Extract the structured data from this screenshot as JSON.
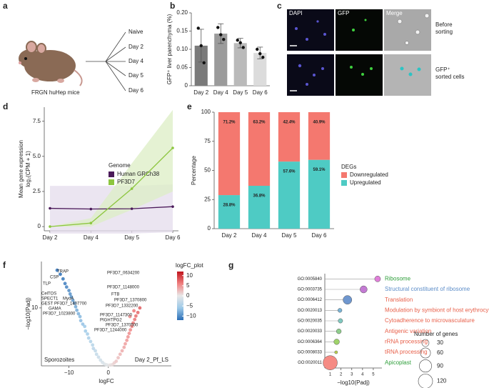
{
  "panels": {
    "labels": [
      "a",
      "b",
      "c",
      "d",
      "e",
      "f",
      "g"
    ]
  },
  "diagram_a": {
    "mouse_label": "FRGN huHep mice",
    "groups": [
      "Naive",
      "Day 2",
      "Day 4",
      "Day 5",
      "Day 6"
    ]
  },
  "image_c": {
    "columns": [
      "DAPI",
      "GFP",
      "Merge"
    ],
    "row_labels": [
      [
        "Before",
        "sorting"
      ],
      [
        "GFP⁺",
        "sorted cells"
      ]
    ]
  },
  "chart_data": [
    {
      "type": "bar",
      "ylabel": "GFP⁺ liver parenchyma (%)",
      "categories": [
        "Day 2",
        "Day 4",
        "Day 5",
        "Day 6"
      ],
      "values": [
        0.11,
        0.143,
        0.117,
        0.09
      ],
      "errors": [
        0.045,
        0.027,
        0.013,
        0.016
      ],
      "points": [
        [
          0.158,
          0.11,
          0.063
        ],
        [
          0.16,
          0.14,
          0.127
        ],
        [
          0.125,
          0.118,
          0.105
        ],
        [
          0.1,
          0.088,
          0.078
        ]
      ],
      "colors": [
        "#7a7a7a",
        "#9b9b9b",
        "#bababa",
        "#dcdcdc"
      ],
      "ylim": [
        0,
        0.2
      ],
      "yticks": [
        0,
        0.05,
        {
          "value": 0.1,
          "label": "0.10"
        },
        0.15,
        {
          "value": 0.2,
          "label": "0.20"
        }
      ]
    },
    {
      "type": "line",
      "ylabel": "Mean gene expression",
      "ylabel2": "log₂(CPM + 1)",
      "legend_title": "Genome",
      "categories": [
        "Day 2",
        "Day 4",
        "Day 5",
        "Day 6"
      ],
      "series": [
        {
          "name": "Human GRCh38",
          "color": "#4b1a5a",
          "band_color": "#e4dcec",
          "values": [
            1.3,
            1.25,
            1.27,
            1.42
          ],
          "band_lower": [
            -0.5,
            -0.5,
            -0.5,
            -0.4
          ],
          "band_upper": [
            2.9,
            2.9,
            2.9,
            3.0
          ]
        },
        {
          "name": "PF3D7",
          "color": "#8dc63f",
          "band_color": "#dcedc4",
          "values": [
            0,
            0.25,
            2.7,
            5.6
          ],
          "band_lower": [
            0,
            0,
            1.2,
            2.5
          ],
          "band_upper": [
            0,
            0.6,
            4.5,
            8.3
          ]
        }
      ],
      "ylim": [
        -0.3,
        8.5
      ],
      "yticks": [
        0,
        2.5,
        {
          "value": 5,
          "label": "5.0"
        },
        7.5
      ]
    },
    {
      "type": "stacked_bar",
      "ylabel": "Percentage",
      "legend_title": "DEGs",
      "categories": [
        "Day 2",
        "Day 4",
        "Day 5",
        "Day 6"
      ],
      "series": [
        {
          "name": "Downregulated",
          "color": "#f4786f",
          "values": [
            71.2,
            63.2,
            42.4,
            40.9
          ],
          "value_labels": [
            "71.2%",
            "63.2%",
            "42.4%",
            "40.9%"
          ]
        },
        {
          "name": "Upregulated",
          "color": "#4ecbc4",
          "values": [
            28.8,
            36.8,
            57.6,
            59.1
          ],
          "value_labels": [
            "28.8%",
            "36.8%",
            "57.6%",
            "59.1%"
          ]
        }
      ],
      "ylim": [
        0,
        100
      ],
      "yticks": [
        0,
        25,
        50,
        75,
        100
      ]
    },
    {
      "type": "scatter",
      "xlabel": "logFC",
      "ylabel": "−log10(Padj)",
      "left_label": "Sporozoites",
      "right_label": "Day 2_Pf_LS",
      "x": [
        -1.5,
        -2,
        -2.5,
        -3,
        -3.3,
        -3.8,
        -4,
        -4.5,
        -5,
        -5.3,
        -5.8,
        -6,
        -6.5,
        -7,
        -7.2,
        -7.6,
        -8,
        -8.3,
        -8.6,
        -9,
        -9.4,
        -9.7,
        -10,
        -10.6,
        -11,
        -11.5,
        -12.2,
        -13,
        -1,
        0,
        1,
        -0.5,
        0.5,
        1.5,
        2,
        2.5,
        3,
        3.5,
        4,
        4.3,
        4.7,
        5,
        5.3,
        5.6,
        6,
        6.3,
        6.7,
        7,
        7.5,
        8,
        5.5,
        6.5
      ],
      "y": [
        0.6,
        1,
        1.5,
        2,
        2.6,
        3,
        3.6,
        4.2,
        4.8,
        5.5,
        6,
        6.8,
        7.2,
        7.8,
        8.5,
        9,
        9.6,
        10.2,
        10.8,
        11.3,
        11.9,
        12.4,
        13,
        13.6,
        14.2,
        15,
        15.8,
        16.5,
        0.3,
        0.1,
        0.2,
        0.2,
        0.15,
        0.5,
        0.8,
        1.4,
        2,
        2.6,
        3.2,
        3.8,
        4.4,
        5,
        5.6,
        6.2,
        6.8,
        7.4,
        8,
        8.6,
        9.2,
        10,
        8.5,
        9.5
      ],
      "annotations": [
        "TRAP",
        "CSP",
        "TLP",
        "CelTOS",
        "SPECT1",
        "MyoA",
        "GEST",
        "PF3D7_1407700",
        "GAMA",
        "PF3D7_1023800",
        "PF3D7_0634200",
        "PF3D7_1148000",
        "FTB",
        "PF3D7_1370800",
        "PF3D7_1332200",
        "PF3D7_1147300",
        "PIGH",
        "TPG2",
        "PF3D7_1370500",
        "PF3D7_1244000"
      ],
      "xlim": [
        -17,
        16
      ],
      "xticks": [
        {
          "value": -10,
          "label": "−10"
        },
        0
      ],
      "ylim": [
        0,
        18
      ],
      "yticks": [
        10
      ],
      "colorbar_title": "logFC_plot",
      "colorbar_lim": [
        -12,
        12
      ],
      "colorscale": [
        "#2a6db5",
        "#9cc9e8",
        "#e8e8e8",
        "#f08080",
        "#c0141c"
      ],
      "colorbar_ticks": [
        10,
        5,
        0,
        {
          "value": -5,
          "label": "−5"
        },
        {
          "value": -10,
          "label": "−10"
        }
      ]
    },
    {
      "type": "dot",
      "xlabel": "−log10(Padj)",
      "size_title": "Number of genes",
      "categories": [
        "GO:0005840",
        "GO:0003735",
        "GO:0006412",
        "GO:0020013",
        "GO:0020035",
        "GO:0020033",
        "GO:0006364",
        "GO:0008033",
        "GO:0020011"
      ],
      "terms": [
        "Ribosome",
        "Structural constituent of ribosome",
        "Translation",
        "Modulation by symbiont of host erythrocyte",
        "Cytoadherence to microvasculature",
        "Antigenic variation",
        "rRNA processing",
        "tRNA processing",
        "Apicoplast"
      ],
      "term_colors": [
        "#2e9e3a",
        "#5b8cc8",
        "#e8604a",
        "#e8604a",
        "#e8604a",
        "#e8604a",
        "#e8604a",
        "#e8604a",
        "#2e9e3a"
      ],
      "values": [
        5.4,
        4.1,
        2.6,
        1.9,
        1.95,
        1.8,
        1.6,
        1.55,
        1.0
      ],
      "sizes": [
        20,
        30,
        45,
        10,
        12,
        14,
        18,
        5,
        120
      ],
      "colors": [
        "#e07ed9",
        "#c37ad3",
        "#6f97cf",
        "#7ab4d6",
        "#80c9c0",
        "#8fce8c",
        "#9fd36a",
        "#b9d24a",
        "#f58b84"
      ],
      "xlim": [
        0.5,
        5.8
      ],
      "xticks": [
        1,
        2,
        3,
        4,
        5
      ],
      "size_ticks": [
        30,
        60,
        90,
        120
      ],
      "size_max": 120
    }
  ]
}
